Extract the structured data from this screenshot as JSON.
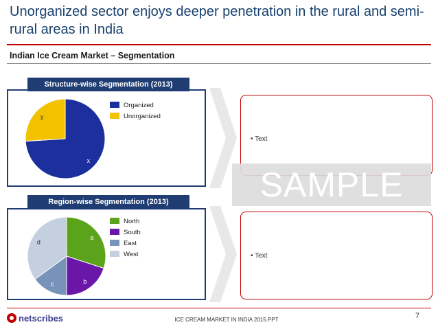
{
  "slide": {
    "title": "Unorganized sector enjoys deeper penetration in the rural and semi-rural areas in India",
    "section_heading": "Indian Ice Cream Market – Segmentation"
  },
  "panels": [
    {
      "header": "Structure-wise Segmentation (2013)",
      "bullet": "Text"
    },
    {
      "header": "Region-wise Segmentation (2013)",
      "bullet": "Text"
    }
  ],
  "watermark": "SAMPLE",
  "footer": {
    "logo": "netscribes",
    "report": "ICE CREAM MARKET IN INDIA 2015.PPT",
    "page": "7"
  },
  "colors": {
    "title": "#17406d",
    "accent": "#c00000",
    "panel_header": "#1f3d72"
  },
  "chart_data": [
    {
      "type": "pie",
      "title": "Structure-wise Segmentation (2013)",
      "legend_position": "right",
      "slices": [
        {
          "name": "Organized",
          "data_label": "x",
          "value": 74,
          "color": "#1c2f9c"
        },
        {
          "name": "Unorganized",
          "data_label": "y",
          "value": 26,
          "color": "#f2c100"
        }
      ]
    },
    {
      "type": "pie",
      "title": "Region-wise Segmentation (2013)",
      "legend_position": "right",
      "slices": [
        {
          "name": "North",
          "data_label": "a",
          "value": 30,
          "color": "#5aa31a"
        },
        {
          "name": "South",
          "data_label": "b",
          "value": 20,
          "color": "#6a16a8"
        },
        {
          "name": "East",
          "data_label": "c",
          "value": 15,
          "color": "#7893ba"
        },
        {
          "name": "West",
          "data_label": "d",
          "value": 35,
          "color": "#c4cfe0"
        }
      ]
    }
  ]
}
